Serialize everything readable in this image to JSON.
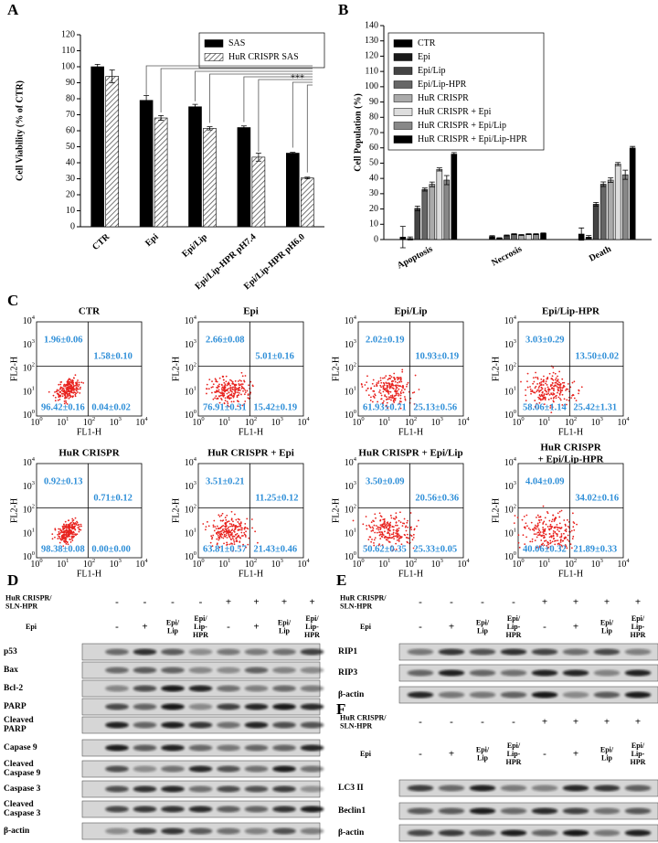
{
  "chart_data": [
    {
      "type": "bar",
      "panel": "A",
      "ylabel": "Cell Viability (% of CTR)",
      "categories": [
        "CTR",
        "Epi",
        "Epi/Lip",
        "Epi/Lip-HPR pH7.4",
        "Epi/Lip-HPR pH6.0"
      ],
      "series": [
        {
          "name": "SAS",
          "color": "#000000",
          "values": [
            100,
            79,
            75,
            62,
            46
          ],
          "errors": [
            1.5,
            3,
            1.5,
            1,
            0.5
          ]
        },
        {
          "name": "HuR CRISPR SAS",
          "color": "#888888",
          "hatch": true,
          "values": [
            94,
            68,
            61.5,
            43.5,
            30.5
          ],
          "errors": [
            4,
            1.5,
            1,
            2.5,
            0.5
          ]
        }
      ],
      "ylim": [
        0,
        120
      ],
      "yticks": [
        0,
        10,
        20,
        30,
        40,
        50,
        60,
        70,
        80,
        90,
        100,
        110,
        120
      ],
      "annotation": "***",
      "legend": "upper right"
    },
    {
      "type": "bar",
      "panel": "B",
      "ylabel": "Cell Population (%)",
      "categories": [
        "Apoptosis",
        "Necrosis",
        "Death"
      ],
      "series": [
        {
          "name": "CTR",
          "color": "#000000",
          "values": [
            1.6,
            2,
            3.6
          ],
          "errors": [
            7,
            0.5,
            4
          ]
        },
        {
          "name": "Epi",
          "color": "#1a1a1a",
          "values": [
            0.7,
            0.9,
            1.6
          ],
          "errors": [
            1,
            0.3,
            1
          ]
        },
        {
          "name": "Epi/Lip",
          "color": "#444444",
          "values": [
            20.4,
            2.7,
            23.1
          ],
          "errors": [
            1.5,
            0.3,
            1.2
          ]
        },
        {
          "name": "Epi/Lip-HPR",
          "color": "#666666",
          "values": [
            32.7,
            3.5,
            36.2
          ],
          "errors": [
            1,
            0.3,
            1.5
          ]
        },
        {
          "name": "HuR CRISPR",
          "color": "#aaaaaa",
          "values": [
            36.1,
            3,
            38.9
          ],
          "errors": [
            1.5,
            0.3,
            1.5
          ]
        },
        {
          "name": "HuR CRISPR + Epi",
          "color": "#dddddd",
          "values": [
            45.9,
            3.5,
            49.4
          ],
          "errors": [
            1,
            0.3,
            1
          ]
        },
        {
          "name": "HuR CRISPR + Epi/Lip",
          "color": "#888888",
          "values": [
            38.9,
            3.5,
            42.4
          ],
          "errors": [
            3,
            0.3,
            3
          ]
        },
        {
          "name": "HuR CRISPR + Epi/Lip-HPR",
          "color": "#000000",
          "values": [
            55.9,
            4,
            59.9
          ],
          "errors": [
            1,
            0.3,
            1
          ]
        }
      ],
      "ylim": [
        0,
        140
      ],
      "yticks": [
        0,
        10,
        20,
        30,
        40,
        50,
        60,
        70,
        80,
        90,
        100,
        110,
        120,
        130,
        140
      ],
      "legend": "upper left"
    }
  ],
  "flow": {
    "panel": "C",
    "x_label": "FL1-H",
    "y_label": "FL2-H",
    "tick_base": "10",
    "tick_exponents": [
      0,
      1,
      2,
      3,
      4
    ],
    "plots": [
      {
        "title": "CTR",
        "ul": "1.96±0.06",
        "ur": "1.58±0.10",
        "ll": "96.42±0.16",
        "lr": "0.04±0.02"
      },
      {
        "title": "Epi",
        "ul": "2.66±0.08",
        "ur": "5.01±0.16",
        "ll": "76.91±0.31",
        "lr": "15.42±0.19"
      },
      {
        "title": "Epi/Lip",
        "ul": "2.02±0.19",
        "ur": "10.93±0.19",
        "ll": "61.93±0.71",
        "lr": "25.13±0.56"
      },
      {
        "title": "Epi/Lip-HPR",
        "ul": "3.03±0.29",
        "ur": "13.50±0.02",
        "ll": "58.06±1.14",
        "lr": "25.42±1.31"
      },
      {
        "title": "HuR CRISPR",
        "ul": "0.92±0.13",
        "ur": "0.71±0.12",
        "ll": "98.38±0.08",
        "lr": "0.00±0.00"
      },
      {
        "title": "HuR CRISPR + Epi",
        "ul": "3.51±0.21",
        "ur": "11.25±0.12",
        "ll": "63.81±0.57",
        "lr": "21.43±0.46"
      },
      {
        "title": "HuR CRISPR + Epi/Lip",
        "ul": "3.50±0.09",
        "ur": "20.56±0.36",
        "ll": "50.62±0.35",
        "lr": "25.33±0.05"
      },
      {
        "title": [
          "HuR CRISPR",
          "+ Epi/Lip-HPR"
        ],
        "ul": "4.04±0.09",
        "ur": "34.02±0.16",
        "ll": "40.06±0.32",
        "lr": "21.89±0.33"
      }
    ]
  },
  "blots": [
    {
      "panel": "D",
      "header_rows": [
        {
          "label": [
            "HuR CRISPR/",
            "SLN-HPR"
          ],
          "lanes": [
            "-",
            "-",
            "-",
            "-",
            "+",
            "+",
            "+",
            "+"
          ]
        },
        {
          "label": "Epi",
          "lanes": [
            "-",
            "+",
            [
              "Epi/",
              "Lip"
            ],
            [
              "Epi/",
              "Lip-",
              "HPR"
            ],
            "-",
            "+",
            [
              "Epi/",
              "Lip"
            ],
            [
              "Epi/",
              "Lip-",
              "HPR"
            ]
          ]
        }
      ],
      "bands": [
        "p53",
        "Bax",
        "Bcl-2",
        "PARP",
        [
          "Cleaved",
          "PARP"
        ],
        "Capase 9",
        [
          "Cleaved",
          "Caspase 9"
        ],
        "Caspase 3",
        [
          "Cleaved",
          "Caspase 3"
        ],
        "β-actin"
      ]
    },
    {
      "panel": "E",
      "header_rows": [
        {
          "label": [
            "HuR CRISPR/",
            "SLN-HPR"
          ],
          "lanes": [
            "-",
            "-",
            "-",
            "-",
            "+",
            "+",
            "+",
            "+"
          ]
        },
        {
          "label": "Epi",
          "lanes": [
            "-",
            "+",
            [
              "Epi/",
              "Lip"
            ],
            [
              "Epi/",
              "Lip-",
              "HPR"
            ],
            "-",
            "+",
            [
              "Epi/",
              "Lip"
            ],
            [
              "Epi/",
              "Lip-",
              "HPR"
            ]
          ]
        }
      ],
      "bands": [
        "RIP1",
        "RIP3",
        "β-actin"
      ]
    },
    {
      "panel": "F",
      "header_rows": [
        {
          "label": [
            "HuR CRISPR/",
            "SLN-HPR"
          ],
          "lanes": [
            "-",
            "-",
            "-",
            "-",
            "+",
            "+",
            "+",
            "+"
          ]
        },
        {
          "label": "Epi",
          "lanes": [
            "-",
            "+",
            [
              "Epi/",
              "Lip"
            ],
            [
              "Epi/",
              "Lip-",
              "HPR"
            ],
            "-",
            "+",
            [
              "Epi/",
              "Lip"
            ],
            [
              "Epi/",
              "Lip-",
              "HPR"
            ]
          ]
        }
      ],
      "bands": [
        "LC3 II",
        "Beclin1",
        "β-actin"
      ]
    }
  ]
}
